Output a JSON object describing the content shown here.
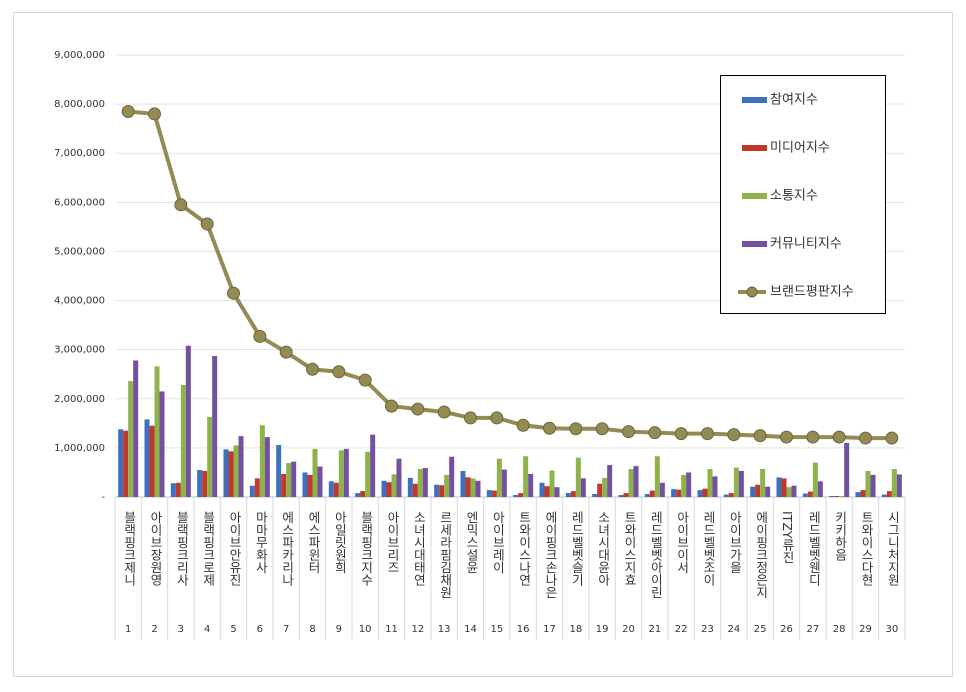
{
  "chart_data": {
    "type": "bar-line",
    "categories": [
      "블랙핑크제니",
      "아이브장원영",
      "블랙핑크리사",
      "블랙핑크로제",
      "아이브안유진",
      "마마무화사",
      "에스파카리나",
      "에스파윈터",
      "아일릿원희",
      "블랙핑크지수",
      "아이브리즈",
      "소녀시대태연",
      "르세라핌김채원",
      "엔믹스설윤",
      "아이브레이",
      "트와이스나연",
      "에이핑크손나은",
      "레드벨벳슬기",
      "소녀시대윤아",
      "트와이스지효",
      "레드벨벳아이린",
      "아이브이서",
      "레드벨벳조이",
      "아이브가을",
      "에이핑크정은지",
      "ITZY류진",
      "레드벨벳웬디",
      "키키하음",
      "트와이스다현",
      "시그니처지원"
    ],
    "category_numbers": [
      1,
      2,
      3,
      4,
      5,
      6,
      7,
      8,
      9,
      10,
      11,
      12,
      13,
      14,
      15,
      16,
      17,
      18,
      19,
      20,
      21,
      22,
      23,
      24,
      25,
      26,
      27,
      28,
      29,
      30
    ],
    "series": [
      {
        "name": "참여지수",
        "type": "bar",
        "color": "#3f6fbf",
        "values": [
          1380000,
          1580000,
          280000,
          550000,
          970000,
          230000,
          1060000,
          500000,
          320000,
          80000,
          330000,
          390000,
          250000,
          530000,
          140000,
          40000,
          290000,
          80000,
          60000,
          40000,
          60000,
          160000,
          140000,
          50000,
          210000,
          400000,
          70000,
          20000,
          100000,
          50000
        ]
      },
      {
        "name": "미디어지수",
        "type": "bar",
        "color": "#c0392b",
        "values": [
          1350000,
          1450000,
          290000,
          530000,
          930000,
          380000,
          470000,
          450000,
          290000,
          120000,
          300000,
          270000,
          240000,
          400000,
          130000,
          80000,
          220000,
          120000,
          270000,
          80000,
          130000,
          150000,
          170000,
          80000,
          250000,
          380000,
          110000,
          20000,
          140000,
          120000
        ]
      },
      {
        "name": "소통지수",
        "type": "bar",
        "color": "#8db34a",
        "values": [
          2360000,
          2660000,
          2280000,
          1630000,
          1050000,
          1460000,
          690000,
          980000,
          950000,
          920000,
          460000,
          570000,
          450000,
          380000,
          780000,
          830000,
          540000,
          800000,
          390000,
          570000,
          830000,
          450000,
          570000,
          600000,
          570000,
          200000,
          700000,
          20000,
          530000,
          570000
        ]
      },
      {
        "name": "커뮤니티지수",
        "type": "bar",
        "color": "#7451a0",
        "values": [
          2780000,
          2150000,
          3080000,
          2870000,
          1240000,
          1220000,
          720000,
          620000,
          980000,
          1270000,
          780000,
          590000,
          820000,
          330000,
          560000,
          470000,
          200000,
          380000,
          650000,
          630000,
          290000,
          500000,
          420000,
          530000,
          210000,
          230000,
          320000,
          1100000,
          450000,
          460000
        ]
      },
      {
        "name": "브랜드평판지수",
        "type": "line",
        "color": "#948a54",
        "values": [
          7850000,
          7800000,
          5950000,
          5560000,
          4150000,
          3270000,
          2950000,
          2600000,
          2550000,
          2380000,
          1850000,
          1790000,
          1730000,
          1610000,
          1610000,
          1460000,
          1400000,
          1390000,
          1390000,
          1330000,
          1310000,
          1290000,
          1290000,
          1270000,
          1250000,
          1220000,
          1220000,
          1220000,
          1200000,
          1200000
        ]
      }
    ],
    "ylim": [
      0,
      9000000
    ],
    "yticks": [
      {
        "value": 0,
        "label": "-"
      },
      {
        "value": 1000000,
        "label": "1,000,000"
      },
      {
        "value": 2000000,
        "label": "2,000,000"
      },
      {
        "value": 3000000,
        "label": "3,000,000"
      },
      {
        "value": 4000000,
        "label": "4,000,000"
      },
      {
        "value": 5000000,
        "label": "5,000,000"
      },
      {
        "value": 6000000,
        "label": "6,000,000"
      },
      {
        "value": 7000000,
        "label": "7,000,000"
      },
      {
        "value": 8000000,
        "label": "8,000,000"
      },
      {
        "value": 9000000,
        "label": "9,000,000"
      }
    ],
    "grid": true
  }
}
